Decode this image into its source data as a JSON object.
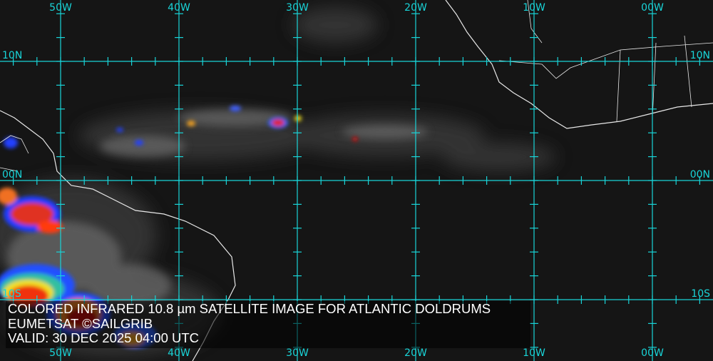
{
  "caption": {
    "title": "COLORED INFRARED 10.8 µm SATELLITE IMAGE FOR ATLANTIC DOLDRUMS",
    "credit": "EUMETSAT ©SAILGRIB",
    "valid": "VALID:  30 DEC 2025 04:00 UTC"
  },
  "grid": {
    "longitudes": [
      "50W",
      "40W",
      "30W",
      "20W",
      "10W",
      "00W"
    ],
    "latitudes_left": [
      "10N",
      "00N",
      "10S"
    ],
    "latitudes_right": [
      "10N",
      "00N",
      "10S"
    ],
    "color": "#19d4d8"
  }
}
